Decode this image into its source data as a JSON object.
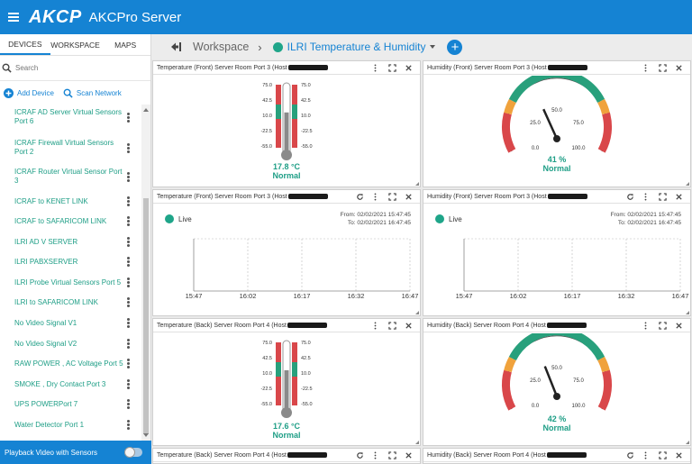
{
  "app": {
    "logo": "AKCP",
    "title": "AKCPro Server"
  },
  "sidebar": {
    "tabs": [
      "DEVICES",
      "WORKSPACE",
      "MAPS"
    ],
    "search_placeholder": "Search",
    "add_device": "Add Device",
    "scan_network": "Scan Network",
    "devices": [
      "ICRAF AD Server Virtual Sensors Port 6",
      "ICRAF Firewall Virtual Sensors Port 2",
      "ICRAF Router Virtual Sensor Port 3",
      "ICRAF to KENET LINK",
      "ICRAF to SAFARICOM LINK",
      "ILRI AD V SERVER",
      "ILRI PABXSERVER",
      "ILRI Probe Virtual Sensors Port 5",
      "ILRI to SAFARICOM LINK",
      "No Video Signal V1",
      "No Video Signal V2",
      "RAW POWER , AC Voltage Port 5",
      "SMOKE , Dry Contact Port 3",
      "UPS POWERPort 7",
      "Water Detector Port 1"
    ],
    "playback_label": "Playback Video with Sensors"
  },
  "workspace": {
    "crumb": "Workspace",
    "name": "ILRI Temperature & Humidity"
  },
  "panels": {
    "p1": {
      "title": "Temperature (Front) Server Room Port 3 (Host",
      "value": "17.8 °C",
      "status": "Normal",
      "ticks": [
        "75.0",
        "42.5",
        "10.0",
        "-22.5",
        "-55.0"
      ],
      "level": 17.8
    },
    "p2": {
      "title": "Humidity (Front) Server Room Port 3 (Host",
      "value": "41 %",
      "status": "Normal",
      "ticks": [
        "0.0",
        "25.0",
        "50.0",
        "75.0",
        "100.0"
      ],
      "level": 41
    },
    "p3": {
      "title": "Temperature (Front) Server Room Port 3 (Host",
      "live": "Live",
      "from": "From: 02/02/2021 15:47:45",
      "to": "To: 02/02/2021 16:47:45",
      "xticks": [
        "15:47",
        "16:02",
        "16:17",
        "16:32",
        "16:47"
      ]
    },
    "p4": {
      "title": "Humidity (Front) Server Room Port 3 (Host",
      "live": "Live",
      "from": "From: 02/02/2021 15:47:45",
      "to": "To: 02/02/2021 16:47:45",
      "xticks": [
        "15:47",
        "16:02",
        "16:17",
        "16:32",
        "16:47"
      ]
    },
    "p5": {
      "title": "Temperature (Back) Server Room Port 4 (Host",
      "value": "17.6 °C",
      "status": "Normal",
      "ticks": [
        "75.0",
        "42.5",
        "10.0",
        "-22.5",
        "-55.0"
      ],
      "level": 17.6
    },
    "p6": {
      "title": "Humidity (Back) Server Room Port 4 (Host",
      "value": "42 %",
      "status": "Normal",
      "ticks": [
        "0.0",
        "25.0",
        "50.0",
        "75.0",
        "100.0"
      ],
      "level": 42
    },
    "p7": {
      "title": "Temperature (Back) Server Room Port 4 (Host"
    },
    "p8": {
      "title": "Humidity (Back) Server Room Port 4 (Host"
    }
  },
  "colors": {
    "primary": "#1583d3",
    "teal": "#1e9e86",
    "gauge_green": "#28a07c",
    "gauge_orange": "#f0a23c",
    "gauge_red": "#d9474a"
  }
}
